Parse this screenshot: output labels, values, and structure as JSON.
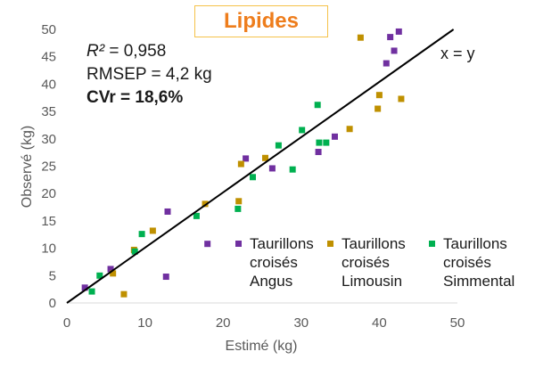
{
  "chart_data": {
    "type": "scatter",
    "title": "Lipides",
    "xlabel": "Estimé (kg)",
    "ylabel": "Observé (kg)",
    "xlim": [
      0,
      50
    ],
    "ylim": [
      0,
      50
    ],
    "xticks": [
      "0",
      "10",
      "20",
      "30",
      "40",
      "50"
    ],
    "yticks": [
      "0",
      "5",
      "10",
      "15",
      "20",
      "25",
      "30",
      "35",
      "40",
      "45",
      "50"
    ],
    "stats": {
      "r2_label": "R²",
      "r2_value": " = 0,958",
      "rmsep": "RMSEP = 4,2 kg",
      "cvr": "CVr = 18,6%"
    },
    "identity_line_label": "x = y",
    "identity_line": [
      [
        0,
        0
      ],
      [
        49.5,
        50
      ]
    ],
    "series": [
      {
        "name": "Taurillons\ncroisés\nAngus",
        "color": "#7030a0",
        "points": [
          [
            2.3,
            2.8
          ],
          [
            5.6,
            6.2
          ],
          [
            12.7,
            4.8
          ],
          [
            12.9,
            16.7
          ],
          [
            18.0,
            10.8
          ],
          [
            22.9,
            26.4
          ],
          [
            26.3,
            24.6
          ],
          [
            32.2,
            27.6
          ],
          [
            34.3,
            30.4
          ],
          [
            40.9,
            43.8
          ],
          [
            41.4,
            48.6
          ],
          [
            41.9,
            46.1
          ],
          [
            42.5,
            49.6
          ]
        ]
      },
      {
        "name": "Taurillons\ncroisés\nLimousin",
        "color": "#bf9000",
        "points": [
          [
            5.9,
            5.4
          ],
          [
            7.3,
            1.6
          ],
          [
            8.6,
            9.7
          ],
          [
            11.0,
            13.2
          ],
          [
            17.7,
            18.1
          ],
          [
            22.0,
            18.6
          ],
          [
            22.3,
            25.4
          ],
          [
            25.4,
            26.5
          ],
          [
            36.2,
            31.8
          ],
          [
            37.6,
            48.5
          ],
          [
            39.8,
            35.5
          ],
          [
            40.0,
            38.0
          ],
          [
            42.8,
            37.3
          ]
        ]
      },
      {
        "name": "Taurillons\ncroisés\nSimmental",
        "color": "#00b050",
        "points": [
          [
            3.2,
            2.1
          ],
          [
            4.2,
            5.0
          ],
          [
            8.7,
            9.4
          ],
          [
            9.6,
            12.6
          ],
          [
            16.6,
            15.9
          ],
          [
            21.9,
            17.2
          ],
          [
            23.8,
            23.0
          ],
          [
            27.1,
            28.8
          ],
          [
            28.9,
            24.4
          ],
          [
            30.1,
            31.6
          ],
          [
            32.1,
            36.2
          ],
          [
            32.3,
            29.3
          ],
          [
            33.2,
            29.3
          ]
        ]
      }
    ]
  }
}
